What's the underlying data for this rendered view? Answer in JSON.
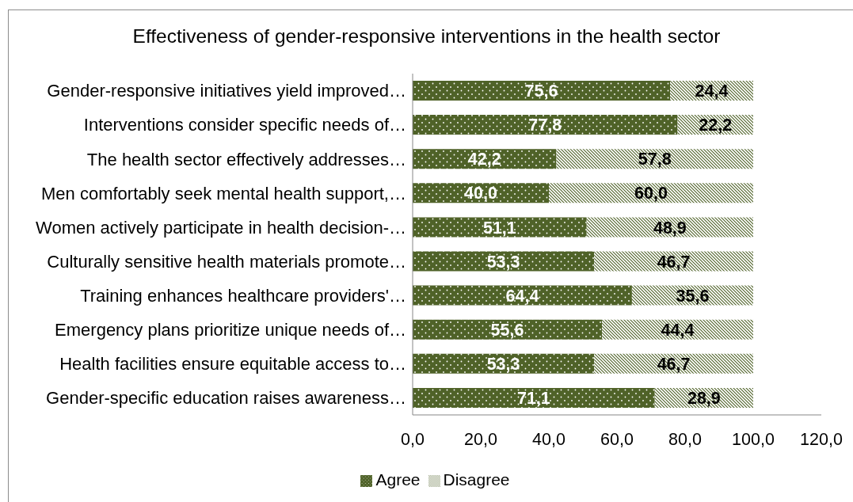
{
  "chart_data": {
    "type": "bar",
    "title": "Effectiveness of gender-responsive interventions in the health sector",
    "orientation": "horizontal",
    "stacked": true,
    "categories": [
      "Gender-responsive initiatives yield improved…",
      "Interventions consider specific needs of…",
      "The health sector effectively addresses…",
      "Men comfortably seek mental health support,…",
      "Women actively participate in health decision-…",
      "Culturally sensitive health materials promote…",
      "Training enhances healthcare providers'…",
      "Emergency plans prioritize unique needs of…",
      "Health facilities ensure equitable access to…",
      "Gender-specific education raises awareness…"
    ],
    "series": [
      {
        "name": "Agree",
        "color": "#4f6228",
        "values": [
          75.6,
          77.8,
          42.2,
          40.0,
          51.1,
          53.3,
          64.4,
          55.6,
          53.3,
          71.1
        ],
        "value_labels": [
          "75,6",
          "77,8",
          "42,2",
          "40,0",
          "51,1",
          "53,3",
          "64,4",
          "55,6",
          "53,3",
          "71,1"
        ]
      },
      {
        "name": "Disagree",
        "color": "#4f6228",
        "values": [
          24.4,
          22.2,
          57.8,
          60.0,
          48.9,
          46.7,
          35.6,
          44.4,
          46.7,
          28.9
        ],
        "value_labels": [
          "24,4",
          "22,2",
          "57,8",
          "60,0",
          "48,9",
          "46,7",
          "35,6",
          "44,4",
          "46,7",
          "28,9"
        ]
      }
    ],
    "xlim": [
      0,
      120
    ],
    "xticks": [
      {
        "value": 0,
        "label": "0,0"
      },
      {
        "value": 20,
        "label": "20,0"
      },
      {
        "value": 40,
        "label": "40,0"
      },
      {
        "value": 60,
        "label": "60,0"
      },
      {
        "value": 80,
        "label": "80,0"
      },
      {
        "value": 100,
        "label": "100,0"
      },
      {
        "value": 120,
        "label": "120,0"
      }
    ],
    "legend": "bottom"
  }
}
